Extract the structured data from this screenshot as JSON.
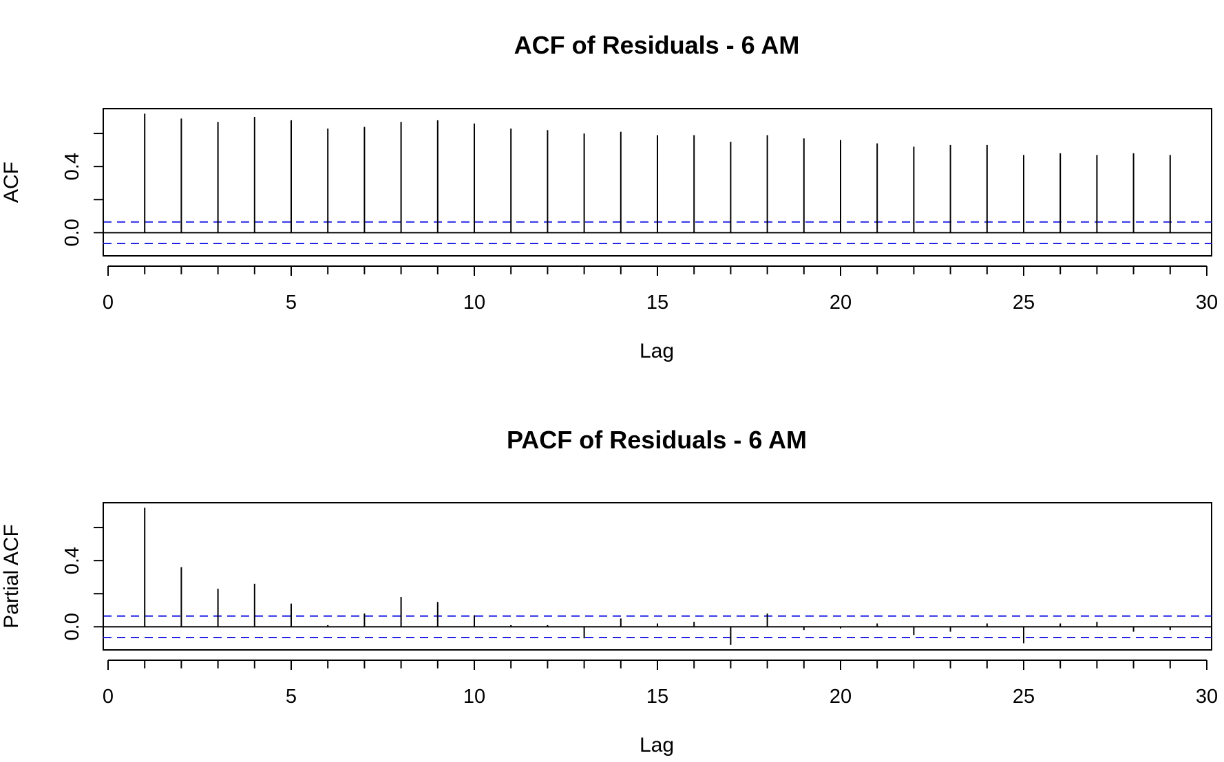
{
  "colors": {
    "confidence_band": "#2424e6",
    "bars": "#000000"
  },
  "chart_data": [
    {
      "type": "bar",
      "title": "ACF of Residuals - 6 AM",
      "xlabel": "Lag",
      "ylabel": "ACF",
      "xlim": [
        0,
        30
      ],
      "ylim": [
        -0.14,
        0.75
      ],
      "x_ticks": [
        0,
        5,
        10,
        15,
        20,
        25,
        30
      ],
      "y_ticks_labeled": [
        "0.0",
        "0.4"
      ],
      "y_ticks_minor": [
        0.2,
        0.6
      ],
      "lags": [
        1,
        2,
        3,
        4,
        5,
        6,
        7,
        8,
        9,
        10,
        11,
        12,
        13,
        14,
        15,
        16,
        17,
        18,
        19,
        20,
        21,
        22,
        23,
        24,
        25,
        26,
        27,
        28,
        29
      ],
      "values": [
        0.72,
        0.69,
        0.67,
        0.7,
        0.68,
        0.63,
        0.64,
        0.67,
        0.68,
        0.66,
        0.63,
        0.62,
        0.6,
        0.61,
        0.59,
        0.59,
        0.55,
        0.59,
        0.57,
        0.56,
        0.54,
        0.52,
        0.53,
        0.53,
        0.47,
        0.48,
        0.47,
        0.48,
        0.47
      ],
      "confidence_band": [
        -0.065,
        0.065
      ],
      "grid": false,
      "legend": "none"
    },
    {
      "type": "bar",
      "title": "PACF of Residuals - 6 AM",
      "xlabel": "Lag",
      "ylabel": "Partial ACF",
      "xlim": [
        0,
        30
      ],
      "ylim": [
        -0.14,
        0.75
      ],
      "x_ticks": [
        0,
        5,
        10,
        15,
        20,
        25,
        30
      ],
      "y_ticks_labeled": [
        "0.0",
        "0.4"
      ],
      "y_ticks_minor": [
        0.2,
        0.6
      ],
      "lags": [
        1,
        2,
        3,
        4,
        5,
        6,
        7,
        8,
        9,
        10,
        11,
        12,
        13,
        14,
        15,
        16,
        17,
        18,
        19,
        20,
        21,
        22,
        23,
        24,
        25,
        26,
        27,
        28,
        29
      ],
      "values": [
        0.72,
        0.36,
        0.23,
        0.26,
        0.14,
        0.01,
        0.08,
        0.18,
        0.15,
        0.07,
        0.01,
        0.01,
        -0.07,
        0.05,
        0.02,
        0.03,
        -0.11,
        0.08,
        -0.02,
        -0.01,
        0.02,
        -0.05,
        -0.03,
        0.02,
        -0.1,
        0.02,
        0.03,
        -0.03,
        -0.02
      ],
      "confidence_band": [
        -0.065,
        0.065
      ],
      "grid": false,
      "legend": "none"
    }
  ]
}
